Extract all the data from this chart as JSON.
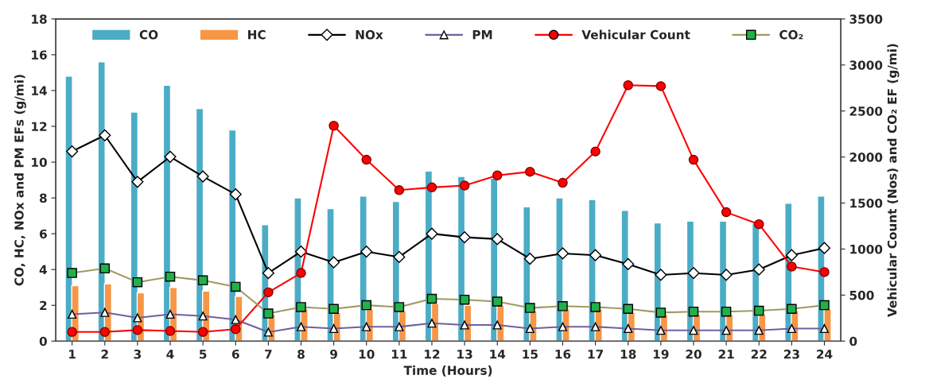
{
  "chart_data": {
    "type": "bar",
    "xlabel": "Time (Hours)",
    "ylabel": "CO, HC, NOx and PM EFs (g/mi)",
    "y2label": "Vehicular Count (Nos) and CO₂ EF (g/mi)",
    "categories": [
      "1",
      "2",
      "3",
      "4",
      "5",
      "6",
      "7",
      "8",
      "9",
      "10",
      "11",
      "12",
      "13",
      "14",
      "15",
      "16",
      "17",
      "18",
      "19",
      "20",
      "21",
      "22",
      "23",
      "24"
    ],
    "series": [
      {
        "name": "CO",
        "color": "#4bacc6",
        "values": [
          14.8,
          15.6,
          12.8,
          14.3,
          13.0,
          11.8,
          6.5,
          8.0,
          7.4,
          8.1,
          7.8,
          9.5,
          9.2,
          9.1,
          7.5,
          8.0,
          7.9,
          7.3,
          6.6,
          6.7,
          6.7,
          6.6,
          7.7,
          8.1
        ]
      },
      {
        "name": "HC",
        "color": "#f79646",
        "values": [
          3.1,
          3.2,
          2.7,
          3.0,
          2.8,
          2.5,
          1.5,
          1.8,
          1.6,
          1.8,
          1.7,
          2.1,
          2.0,
          2.0,
          1.7,
          1.8,
          1.8,
          1.6,
          1.5,
          1.5,
          1.5,
          1.5,
          1.7,
          1.8
        ]
      },
      {
        "name": "NOx",
        "type": "line",
        "color": "#000000",
        "marker": "diamond",
        "values": [
          10.6,
          11.5,
          8.9,
          10.3,
          9.2,
          8.2,
          3.8,
          5.0,
          4.4,
          5.0,
          4.7,
          6.0,
          5.8,
          5.7,
          4.6,
          4.9,
          4.8,
          4.3,
          3.7,
          3.8,
          3.7,
          4.0,
          4.8,
          5.2
        ]
      },
      {
        "name": "PM",
        "type": "line",
        "color": "#7060a0",
        "marker": "triangle",
        "values": [
          1.5,
          1.6,
          1.3,
          1.5,
          1.4,
          1.2,
          0.5,
          0.8,
          0.7,
          0.8,
          0.8,
          1.0,
          0.9,
          0.9,
          0.7,
          0.8,
          0.8,
          0.7,
          0.6,
          0.6,
          0.6,
          0.6,
          0.7,
          0.7
        ]
      },
      {
        "name": "Vehicular Count",
        "type": "line",
        "axis": "y2",
        "color": "#ff0000",
        "marker": "circle",
        "values": [
          100,
          100,
          120,
          110,
          100,
          130,
          530,
          740,
          2340,
          1970,
          1640,
          1670,
          1690,
          1800,
          1840,
          1720,
          2060,
          2780,
          2770,
          1970,
          1400,
          1270,
          810,
          750
        ]
      },
      {
        "name": "CO₂",
        "type": "line",
        "axis": "y2",
        "color": "#a09a60",
        "marker": "square",
        "values": [
          740,
          790,
          640,
          700,
          660,
          590,
          300,
          370,
          350,
          390,
          370,
          460,
          450,
          430,
          360,
          380,
          370,
          350,
          310,
          320,
          320,
          330,
          350,
          390
        ]
      }
    ],
    "ylim": [
      0,
      18
    ],
    "yticks": [
      0,
      2,
      4,
      6,
      8,
      10,
      12,
      14,
      16,
      18
    ],
    "y2lim": [
      0,
      3500
    ],
    "y2ticks": [
      0,
      500,
      1000,
      1500,
      2000,
      2500,
      3000,
      3500
    ],
    "legend": "top",
    "grid": false
  }
}
